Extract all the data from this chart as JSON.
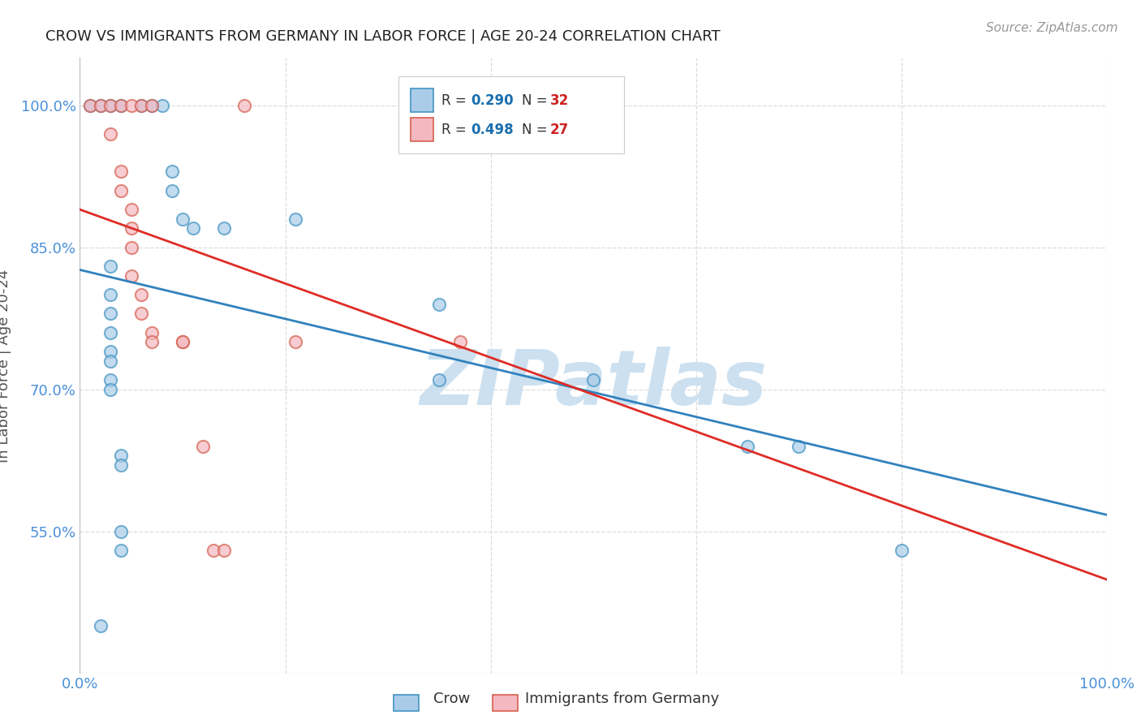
{
  "title": "CROW VS IMMIGRANTS FROM GERMANY IN LABOR FORCE | AGE 20-24 CORRELATION CHART",
  "source": "Source: ZipAtlas.com",
  "ylabel": "In Labor Force | Age 20-24",
  "watermark": "ZIPatlas",
  "xlim": [
    0.0,
    1.0
  ],
  "ylim": [
    0.4,
    1.05
  ],
  "xtick_positions": [
    0.0,
    0.2,
    0.4,
    0.6,
    0.8,
    1.0
  ],
  "xtick_labels_show": [
    "0.0%",
    "",
    "",
    "",
    "",
    "100.0%"
  ],
  "ytick_values": [
    0.55,
    0.7,
    0.85,
    1.0
  ],
  "ytick_labels": [
    "55.0%",
    "70.0%",
    "85.0%",
    "100.0%"
  ],
  "legend_crow_r": "0.290",
  "legend_crow_n": "32",
  "legend_imm_r": "0.498",
  "legend_imm_n": "27",
  "crow_face_color": "#aacce8",
  "crow_edge_color": "#4393c3",
  "imm_face_color": "#f4b8c1",
  "imm_edge_color": "#d6604d",
  "crow_line_color": "#3182bd",
  "imm_line_color": "#de2d26",
  "grid_color": "#dddddd",
  "bg_color": "#ffffff",
  "title_color": "#222222",
  "axis_label_color": "#555555",
  "tick_color": "#4a90d9",
  "legend_r_color": "#1a6faf",
  "legend_n_color": "#cc2222",
  "watermark_color": "#cce0f0",
  "source_color": "#999999",
  "crow_scatter": [
    [
      0.01,
      1.0
    ],
    [
      0.02,
      1.0
    ],
    [
      0.03,
      1.0
    ],
    [
      0.04,
      1.0
    ],
    [
      0.06,
      1.0
    ],
    [
      0.07,
      1.0
    ],
    [
      0.08,
      1.0
    ],
    [
      0.09,
      0.93
    ],
    [
      0.09,
      0.91
    ],
    [
      0.1,
      0.88
    ],
    [
      0.11,
      0.87
    ],
    [
      0.14,
      0.87
    ],
    [
      0.21,
      0.88
    ],
    [
      0.03,
      0.83
    ],
    [
      0.03,
      0.8
    ],
    [
      0.03,
      0.78
    ],
    [
      0.03,
      0.76
    ],
    [
      0.03,
      0.74
    ],
    [
      0.03,
      0.73
    ],
    [
      0.03,
      0.71
    ],
    [
      0.03,
      0.7
    ],
    [
      0.04,
      0.63
    ],
    [
      0.04,
      0.62
    ],
    [
      0.04,
      0.55
    ],
    [
      0.04,
      0.53
    ],
    [
      0.35,
      0.79
    ],
    [
      0.35,
      0.71
    ],
    [
      0.5,
      0.71
    ],
    [
      0.65,
      0.64
    ],
    [
      0.7,
      0.64
    ],
    [
      0.8,
      0.53
    ],
    [
      0.02,
      0.45
    ]
  ],
  "imm_scatter": [
    [
      0.01,
      1.0
    ],
    [
      0.02,
      1.0
    ],
    [
      0.03,
      1.0
    ],
    [
      0.04,
      1.0
    ],
    [
      0.05,
      1.0
    ],
    [
      0.06,
      1.0
    ],
    [
      0.07,
      1.0
    ],
    [
      0.16,
      1.0
    ],
    [
      0.37,
      1.0
    ],
    [
      0.03,
      0.97
    ],
    [
      0.04,
      0.93
    ],
    [
      0.04,
      0.91
    ],
    [
      0.05,
      0.89
    ],
    [
      0.05,
      0.87
    ],
    [
      0.05,
      0.85
    ],
    [
      0.05,
      0.82
    ],
    [
      0.06,
      0.8
    ],
    [
      0.06,
      0.78
    ],
    [
      0.07,
      0.76
    ],
    [
      0.07,
      0.75
    ],
    [
      0.1,
      0.75
    ],
    [
      0.1,
      0.75
    ],
    [
      0.12,
      0.64
    ],
    [
      0.13,
      0.53
    ],
    [
      0.14,
      0.53
    ],
    [
      0.21,
      0.75
    ],
    [
      0.37,
      0.75
    ]
  ]
}
